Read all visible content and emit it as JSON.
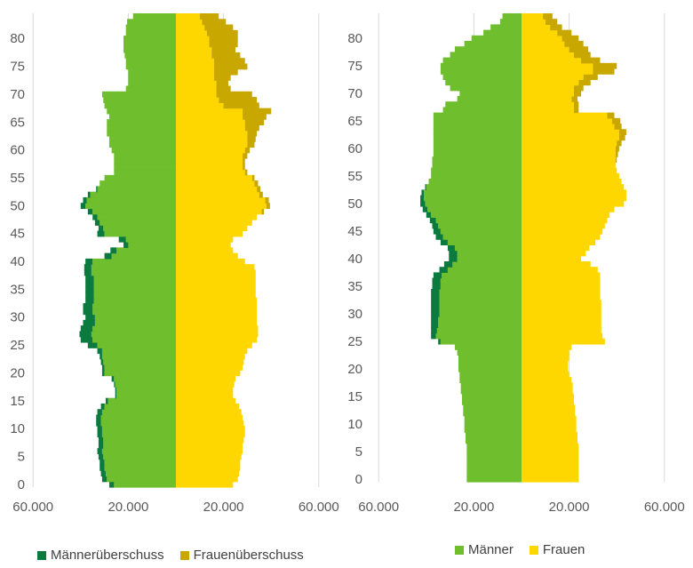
{
  "chart_data": [
    {
      "type": "bar",
      "orientation": "horizontal-population-pyramid",
      "yticks": [
        "0",
        "5",
        "10",
        "15",
        "20",
        "25",
        "30",
        "35",
        "40",
        "45",
        "50",
        "55",
        "60",
        "65",
        "70",
        "75",
        "80"
      ],
      "xticks": [
        "60.000",
        "20.000",
        "20.000",
        "60.000"
      ],
      "xlim": [
        -80000,
        80000
      ],
      "ylim": [
        0,
        84
      ],
      "grid": true,
      "series": [
        {
          "name": "Männer",
          "color": "#6ebe2d",
          "side": "left",
          "values": [
            26000,
            29000,
            29500,
            30000,
            30000,
            30500,
            31000,
            30500,
            30500,
            31000,
            31000,
            31500,
            31500,
            31000,
            30000,
            28500,
            25000,
            25000,
            25500,
            26000,
            30000,
            30000,
            30500,
            31000,
            31000,
            33000,
            35000,
            35500,
            35000,
            34000,
            34000,
            35000,
            35000,
            34500,
            34500,
            34500,
            34500,
            34500,
            35500,
            35500,
            35000,
            27000,
            25000,
            20000,
            21000,
            30000,
            30500,
            32000,
            33000,
            35000,
            38000,
            37500,
            36000,
            33000,
            32000,
            30000,
            26000,
            26000,
            26000,
            26000,
            27000,
            28000,
            28000,
            29000,
            29000,
            29000,
            28000,
            29000,
            30000,
            30500,
            31000,
            21000,
            20000,
            20000,
            20000,
            21000,
            21000,
            21500,
            22000,
            22000,
            22000,
            21000,
            21000,
            20500,
            18000
          ]
        },
        {
          "name": "Männerüberschuss",
          "color": "#0b7a3e",
          "side": "left",
          "values": [
            2000,
            2000,
            2000,
            2000,
            2000,
            2000,
            2000,
            2000,
            2000,
            2000,
            2000,
            2000,
            2000,
            2000,
            1500,
            1000,
            500,
            500,
            500,
            1000,
            1000,
            1000,
            1000,
            1000,
            2000,
            4000,
            5000,
            5000,
            5000,
            5000,
            4000,
            4000,
            4000,
            3500,
            3500,
            3500,
            3500,
            3500,
            3000,
            3000,
            3000,
            3000,
            2500,
            2000,
            3000,
            3000,
            2000,
            2000,
            2000,
            2000,
            2000,
            1500,
            1000,
            500,
            0,
            0,
            0,
            0,
            0,
            0,
            0,
            0,
            0,
            0,
            0,
            0,
            0,
            0,
            0,
            0,
            0,
            0,
            0,
            0,
            0,
            0,
            0,
            0,
            0,
            0,
            0,
            0,
            0,
            0,
            0
          ]
        },
        {
          "name": "Frauen",
          "color": "#ffd700",
          "side": "right",
          "values": [
            24000,
            26000,
            26500,
            27000,
            27000,
            27500,
            28000,
            28000,
            28500,
            29000,
            29000,
            28500,
            28000,
            27500,
            26500,
            25000,
            24000,
            24000,
            24500,
            25000,
            27000,
            28000,
            28500,
            29000,
            30000,
            32000,
            34000,
            34500,
            34500,
            34000,
            34000,
            34000,
            34000,
            34000,
            33500,
            33500,
            33500,
            33500,
            33500,
            33000,
            29000,
            26000,
            24000,
            23000,
            24000,
            28000,
            30000,
            32000,
            34000,
            36000,
            38000,
            37500,
            35000,
            34000,
            33000,
            32000,
            29000,
            28000,
            28000,
            28000,
            29000,
            30000,
            30000,
            30000,
            29000,
            29000,
            28000,
            28000,
            20000,
            18000,
            17000,
            17000,
            17000,
            16000,
            16000,
            16000,
            16000,
            15000,
            15000,
            14000,
            14000,
            13000,
            12000,
            11000,
            10000
          ]
        },
        {
          "name": "Frauenüberschuss",
          "color": "#c8a800",
          "side": "right",
          "values": [
            0,
            0,
            0,
            0,
            0,
            0,
            0,
            0,
            0,
            0,
            0,
            0,
            0,
            0,
            0,
            0,
            0,
            0,
            0,
            0,
            0,
            0,
            0,
            0,
            0,
            0,
            0,
            0,
            0,
            0,
            0,
            0,
            0,
            0,
            0,
            0,
            0,
            0,
            0,
            0,
            0,
            0,
            0,
            0,
            0,
            0,
            0,
            0,
            0,
            1000,
            1500,
            1500,
            1500,
            1500,
            1500,
            1000,
            1000,
            1000,
            1000,
            2000,
            2000,
            3000,
            3500,
            4000,
            6000,
            8000,
            10000,
            12000,
            15000,
            16000,
            15000,
            6000,
            5000,
            7000,
            10000,
            14000,
            13000,
            12000,
            10000,
            12000,
            12000,
            13000,
            12000,
            10000,
            8000
          ]
        }
      ]
    },
    {
      "type": "bar",
      "orientation": "horizontal-population-pyramid",
      "yticks": [
        "0",
        "5",
        "10",
        "15",
        "20",
        "25",
        "30",
        "35",
        "40",
        "45",
        "50",
        "55",
        "60",
        "65",
        "70",
        "75",
        "80"
      ],
      "xticks": [
        "60.000",
        "20.000",
        "20.000",
        "60.000"
      ],
      "xlim": [
        -80000,
        80000
      ],
      "ylim": [
        0,
        84
      ],
      "grid": true,
      "series": [
        {
          "name": "Männer",
          "color": "#6ebe2d",
          "side": "left",
          "values": [
            23000,
            23000,
            23000,
            23000,
            23000,
            23000,
            23000,
            23500,
            23500,
            24000,
            24000,
            24000,
            24500,
            24500,
            25000,
            25000,
            25500,
            25500,
            26000,
            26000,
            26500,
            26500,
            26500,
            27000,
            28000,
            34000,
            36000,
            35500,
            35000,
            35000,
            34500,
            34500,
            34500,
            34500,
            34500,
            34000,
            34000,
            33500,
            31000,
            29000,
            27000,
            27000,
            28000,
            31000,
            33000,
            34000,
            35000,
            36000,
            38000,
            39500,
            40500,
            41000,
            41000,
            40000,
            39000,
            38000,
            38000,
            37500,
            37500,
            37000,
            37000,
            37000,
            37000,
            37000,
            37000,
            37000,
            37000,
            33000,
            32000,
            27000,
            26000,
            30000,
            32000,
            33000,
            34000,
            34000,
            33000,
            30000,
            28000,
            24000,
            21000,
            16000,
            13000,
            9000,
            8000
          ]
        },
        {
          "name": "Männerüberschuss",
          "color": "#0b7a3e",
          "side": "left",
          "values": [
            0,
            0,
            0,
            0,
            0,
            0,
            0,
            0,
            0,
            0,
            0,
            0,
            0,
            0,
            0,
            0,
            0,
            0,
            0,
            0,
            0,
            0,
            0,
            0,
            0,
            1000,
            2000,
            2500,
            3000,
            3000,
            3500,
            3500,
            3500,
            3500,
            3500,
            3500,
            3500,
            3500,
            3500,
            3500,
            3500,
            3500,
            3000,
            3000,
            3000,
            3000,
            2500,
            2500,
            2000,
            2000,
            2000,
            1500,
            1000,
            500,
            0,
            0,
            0,
            0,
            0,
            0,
            0,
            0,
            0,
            0,
            0,
            0,
            0,
            0,
            0,
            0,
            0,
            0,
            0,
            0,
            0,
            0,
            0,
            0,
            0,
            0,
            0,
            0,
            0,
            0,
            0
          ]
        },
        {
          "name": "Frauen",
          "color": "#ffd700",
          "side": "right",
          "values": [
            24000,
            24000,
            24000,
            24000,
            24000,
            24000,
            24000,
            23500,
            23500,
            23000,
            23000,
            23000,
            22500,
            22500,
            22000,
            22000,
            21500,
            21500,
            21000,
            20000,
            19500,
            19500,
            20000,
            20000,
            21000,
            35000,
            34000,
            33500,
            33500,
            33500,
            33500,
            33500,
            33500,
            33000,
            33000,
            33000,
            33000,
            33000,
            32000,
            29000,
            25000,
            27000,
            28500,
            31000,
            33000,
            34000,
            35000,
            36000,
            37000,
            39000,
            43000,
            44000,
            44000,
            43000,
            42000,
            41000,
            40000,
            39500,
            39500,
            39500,
            39500,
            40000,
            41000,
            41000,
            39000,
            38000,
            36000,
            22000,
            22000,
            21000,
            22000,
            22000,
            24000,
            26000,
            30000,
            30000,
            25000,
            22000,
            20000,
            18000,
            17000,
            15000,
            12000,
            10000,
            9000
          ]
        },
        {
          "name": "Frauenüberschuss",
          "color": "#c8a800",
          "side": "right",
          "values": [
            0,
            0,
            0,
            0,
            0,
            0,
            0,
            0,
            0,
            0,
            0,
            0,
            0,
            0,
            0,
            0,
            0,
            0,
            0,
            0,
            0,
            0,
            0,
            0,
            0,
            0,
            0,
            0,
            0,
            0,
            0,
            0,
            0,
            0,
            0,
            0,
            0,
            0,
            0,
            0,
            0,
            0,
            0,
            0,
            0,
            0,
            0,
            0,
            0,
            0,
            0,
            0,
            0,
            0,
            0,
            0,
            0,
            0,
            500,
            1000,
            1500,
            2000,
            2500,
            3000,
            3000,
            3500,
            3000,
            2000,
            2000,
            2500,
            3000,
            4000,
            5000,
            6000,
            9000,
            10000,
            8000,
            7000,
            8000,
            8000,
            7000,
            6000,
            5000,
            5000,
            4000
          ]
        }
      ]
    }
  ],
  "legends": {
    "left": [
      {
        "label": "Männerüberschuss",
        "color": "#0b7a3e"
      },
      {
        "label": "Frauenüberschuss",
        "color": "#c8a800"
      }
    ],
    "right": [
      {
        "label": "Männer",
        "color": "#6ebe2d"
      },
      {
        "label": "Frauen",
        "color": "#ffd700"
      }
    ]
  }
}
